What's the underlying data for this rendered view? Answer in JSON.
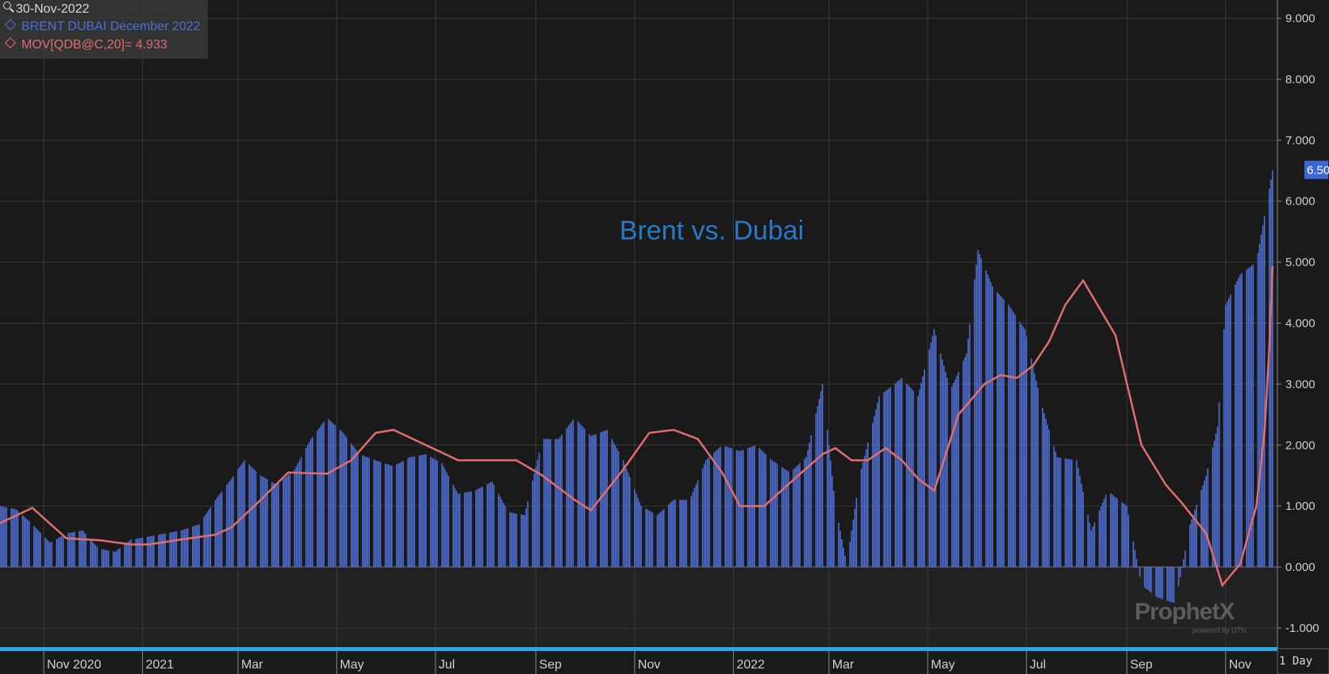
{
  "header": {
    "date": "30-Nov-2022",
    "series_label": "BRENT DUBAI December 2022",
    "ma_label": "MOV[QDB@C,20]= 4.933"
  },
  "footer": {
    "interval": "1 Day"
  },
  "watermark": {
    "brand": "ProphetX",
    "sub": "powered by DTN"
  },
  "colors": {
    "bars": "#4f6fd6",
    "ma_line": "#e06e6e",
    "title": "#2a78c8",
    "badge": "#3a66d9",
    "timeline_strip": "#2aa8e0"
  },
  "chart_data": {
    "type": "bar",
    "title": "Brent vs. Dubai",
    "grid": true,
    "ylim": [
      -1.3,
      9.3
    ],
    "y_ticks": [
      9,
      8,
      7,
      6,
      5,
      4,
      3,
      2,
      1,
      0,
      -1
    ],
    "y_tick_labels": [
      "9.000",
      "8.000",
      "7.000",
      "6.000",
      "5.000",
      "4.000",
      "3.000",
      "2.000",
      "1.000",
      "0.000",
      "-1.000"
    ],
    "last_value_label": "6.507",
    "last_value": 6.507,
    "x_range": [
      "2020-10-05",
      "2022-12-03"
    ],
    "x_tick_labels": [
      {
        "date": "2020-11-01",
        "label": "Nov 2020"
      },
      {
        "date": "2021-01-01",
        "label": "2021"
      },
      {
        "date": "2021-03-01",
        "label": "Mar"
      },
      {
        "date": "2021-05-01",
        "label": "May"
      },
      {
        "date": "2021-07-01",
        "label": "Jul"
      },
      {
        "date": "2021-09-01",
        "label": "Sep"
      },
      {
        "date": "2021-11-01",
        "label": "Nov"
      },
      {
        "date": "2022-01-01",
        "label": "2022"
      },
      {
        "date": "2022-03-01",
        "label": "Mar"
      },
      {
        "date": "2022-05-01",
        "label": "May"
      },
      {
        "date": "2022-07-01",
        "label": "Jul"
      },
      {
        "date": "2022-09-01",
        "label": "Sep"
      },
      {
        "date": "2022-11-01",
        "label": "Nov"
      }
    ],
    "series": [
      {
        "name": "BRENT DUBAI December 2022",
        "type": "bar",
        "points": [
          [
            "2020-10-05",
            1.0
          ],
          [
            "2020-10-15",
            0.95
          ],
          [
            "2020-10-25",
            0.7
          ],
          [
            "2020-11-05",
            0.4
          ],
          [
            "2020-11-15",
            0.55
          ],
          [
            "2020-11-25",
            0.6
          ],
          [
            "2020-12-05",
            0.3
          ],
          [
            "2020-12-15",
            0.25
          ],
          [
            "2020-12-25",
            0.45
          ],
          [
            "2021-01-05",
            0.5
          ],
          [
            "2021-01-15",
            0.55
          ],
          [
            "2021-01-25",
            0.6
          ],
          [
            "2021-02-05",
            0.7
          ],
          [
            "2021-02-15",
            1.1
          ],
          [
            "2021-02-25",
            1.45
          ],
          [
            "2021-03-05",
            1.75
          ],
          [
            "2021-03-15",
            1.5
          ],
          [
            "2021-03-25",
            1.35
          ],
          [
            "2021-04-05",
            1.6
          ],
          [
            "2021-04-15",
            2.1
          ],
          [
            "2021-04-25",
            2.45
          ],
          [
            "2021-05-05",
            2.2
          ],
          [
            "2021-05-15",
            1.85
          ],
          [
            "2021-05-25",
            1.75
          ],
          [
            "2021-06-05",
            1.65
          ],
          [
            "2021-06-15",
            1.8
          ],
          [
            "2021-06-25",
            1.85
          ],
          [
            "2021-07-05",
            1.7
          ],
          [
            "2021-07-15",
            1.2
          ],
          [
            "2021-07-25",
            1.25
          ],
          [
            "2021-08-05",
            1.4
          ],
          [
            "2021-08-15",
            0.9
          ],
          [
            "2021-08-25",
            0.85
          ],
          [
            "2021-09-05",
            2.1
          ],
          [
            "2021-09-15",
            2.1
          ],
          [
            "2021-09-25",
            2.45
          ],
          [
            "2021-10-05",
            2.15
          ],
          [
            "2021-10-15",
            2.25
          ],
          [
            "2021-10-25",
            1.75
          ],
          [
            "2021-11-05",
            1.0
          ],
          [
            "2021-11-15",
            0.85
          ],
          [
            "2021-11-25",
            1.1
          ],
          [
            "2021-12-05",
            1.1
          ],
          [
            "2021-12-15",
            1.75
          ],
          [
            "2021-12-25",
            2.0
          ],
          [
            "2022-01-05",
            1.9
          ],
          [
            "2022-01-15",
            2.0
          ],
          [
            "2022-01-25",
            1.75
          ],
          [
            "2022-02-05",
            1.55
          ],
          [
            "2022-02-15",
            1.8
          ],
          [
            "2022-02-25",
            3.0
          ],
          [
            "2022-03-05",
            1.0
          ],
          [
            "2022-03-12",
            0.05
          ],
          [
            "2022-03-20",
            1.5
          ],
          [
            "2022-04-01",
            2.8
          ],
          [
            "2022-04-15",
            3.1
          ],
          [
            "2022-04-25",
            2.8
          ],
          [
            "2022-05-05",
            3.9
          ],
          [
            "2022-05-15",
            2.9
          ],
          [
            "2022-05-25",
            3.5
          ],
          [
            "2022-06-01",
            5.2
          ],
          [
            "2022-06-10",
            4.6
          ],
          [
            "2022-06-20",
            4.3
          ],
          [
            "2022-06-30",
            3.9
          ],
          [
            "2022-07-10",
            2.7
          ],
          [
            "2022-07-20",
            1.8
          ],
          [
            "2022-08-01",
            1.75
          ],
          [
            "2022-08-10",
            0.6
          ],
          [
            "2022-08-20",
            1.25
          ],
          [
            "2022-09-01",
            1.0
          ],
          [
            "2022-09-10",
            -0.3
          ],
          [
            "2022-09-20",
            -0.5
          ],
          [
            "2022-10-01",
            -0.6
          ],
          [
            "2022-10-10",
            0.7
          ],
          [
            "2022-10-20",
            1.5
          ],
          [
            "2022-10-27",
            2.3
          ],
          [
            "2022-11-01",
            4.3
          ],
          [
            "2022-11-10",
            4.8
          ],
          [
            "2022-11-20",
            5.0
          ],
          [
            "2022-11-30",
            6.507
          ]
        ]
      },
      {
        "name": "MOV[QDB@C,20]",
        "type": "line",
        "points": [
          [
            "2020-10-05",
            0.72
          ],
          [
            "2020-10-25",
            0.97
          ],
          [
            "2020-11-15",
            0.47
          ],
          [
            "2020-12-05",
            0.44
          ],
          [
            "2020-12-25",
            0.37
          ],
          [
            "2021-01-05",
            0.37
          ],
          [
            "2021-01-25",
            0.45
          ],
          [
            "2021-02-15",
            0.53
          ],
          [
            "2021-02-25",
            0.65
          ],
          [
            "2021-03-15",
            1.1
          ],
          [
            "2021-04-01",
            1.55
          ],
          [
            "2021-04-25",
            1.53
          ],
          [
            "2021-05-10",
            1.75
          ],
          [
            "2021-05-25",
            2.2
          ],
          [
            "2021-06-05",
            2.25
          ],
          [
            "2021-06-25",
            2.0
          ],
          [
            "2021-07-15",
            1.75
          ],
          [
            "2021-08-05",
            1.75
          ],
          [
            "2021-08-20",
            1.75
          ],
          [
            "2021-09-05",
            1.5
          ],
          [
            "2021-09-25",
            1.1
          ],
          [
            "2021-10-05",
            0.93
          ],
          [
            "2021-10-25",
            1.6
          ],
          [
            "2021-11-10",
            2.2
          ],
          [
            "2021-11-25",
            2.25
          ],
          [
            "2021-12-10",
            2.1
          ],
          [
            "2021-12-25",
            1.55
          ],
          [
            "2022-01-05",
            1.0
          ],
          [
            "2022-01-20",
            1.0
          ],
          [
            "2022-02-10",
            1.5
          ],
          [
            "2022-02-25",
            1.85
          ],
          [
            "2022-03-05",
            1.95
          ],
          [
            "2022-03-15",
            1.75
          ],
          [
            "2022-03-25",
            1.75
          ],
          [
            "2022-04-05",
            1.95
          ],
          [
            "2022-04-15",
            1.75
          ],
          [
            "2022-04-25",
            1.45
          ],
          [
            "2022-05-05",
            1.25
          ],
          [
            "2022-05-20",
            2.5
          ],
          [
            "2022-06-05",
            3.0
          ],
          [
            "2022-06-15",
            3.15
          ],
          [
            "2022-06-25",
            3.1
          ],
          [
            "2022-07-05",
            3.3
          ],
          [
            "2022-07-15",
            3.7
          ],
          [
            "2022-07-25",
            4.3
          ],
          [
            "2022-08-05",
            4.7
          ],
          [
            "2022-08-25",
            3.8
          ],
          [
            "2022-09-10",
            2.0
          ],
          [
            "2022-09-25",
            1.35
          ],
          [
            "2022-10-05",
            1.05
          ],
          [
            "2022-10-20",
            0.55
          ],
          [
            "2022-10-30",
            -0.3
          ],
          [
            "2022-11-10",
            0.05
          ],
          [
            "2022-11-20",
            1.0
          ],
          [
            "2022-11-25",
            2.2
          ],
          [
            "2022-11-28",
            3.6
          ],
          [
            "2022-11-30",
            4.933
          ]
        ]
      }
    ]
  }
}
